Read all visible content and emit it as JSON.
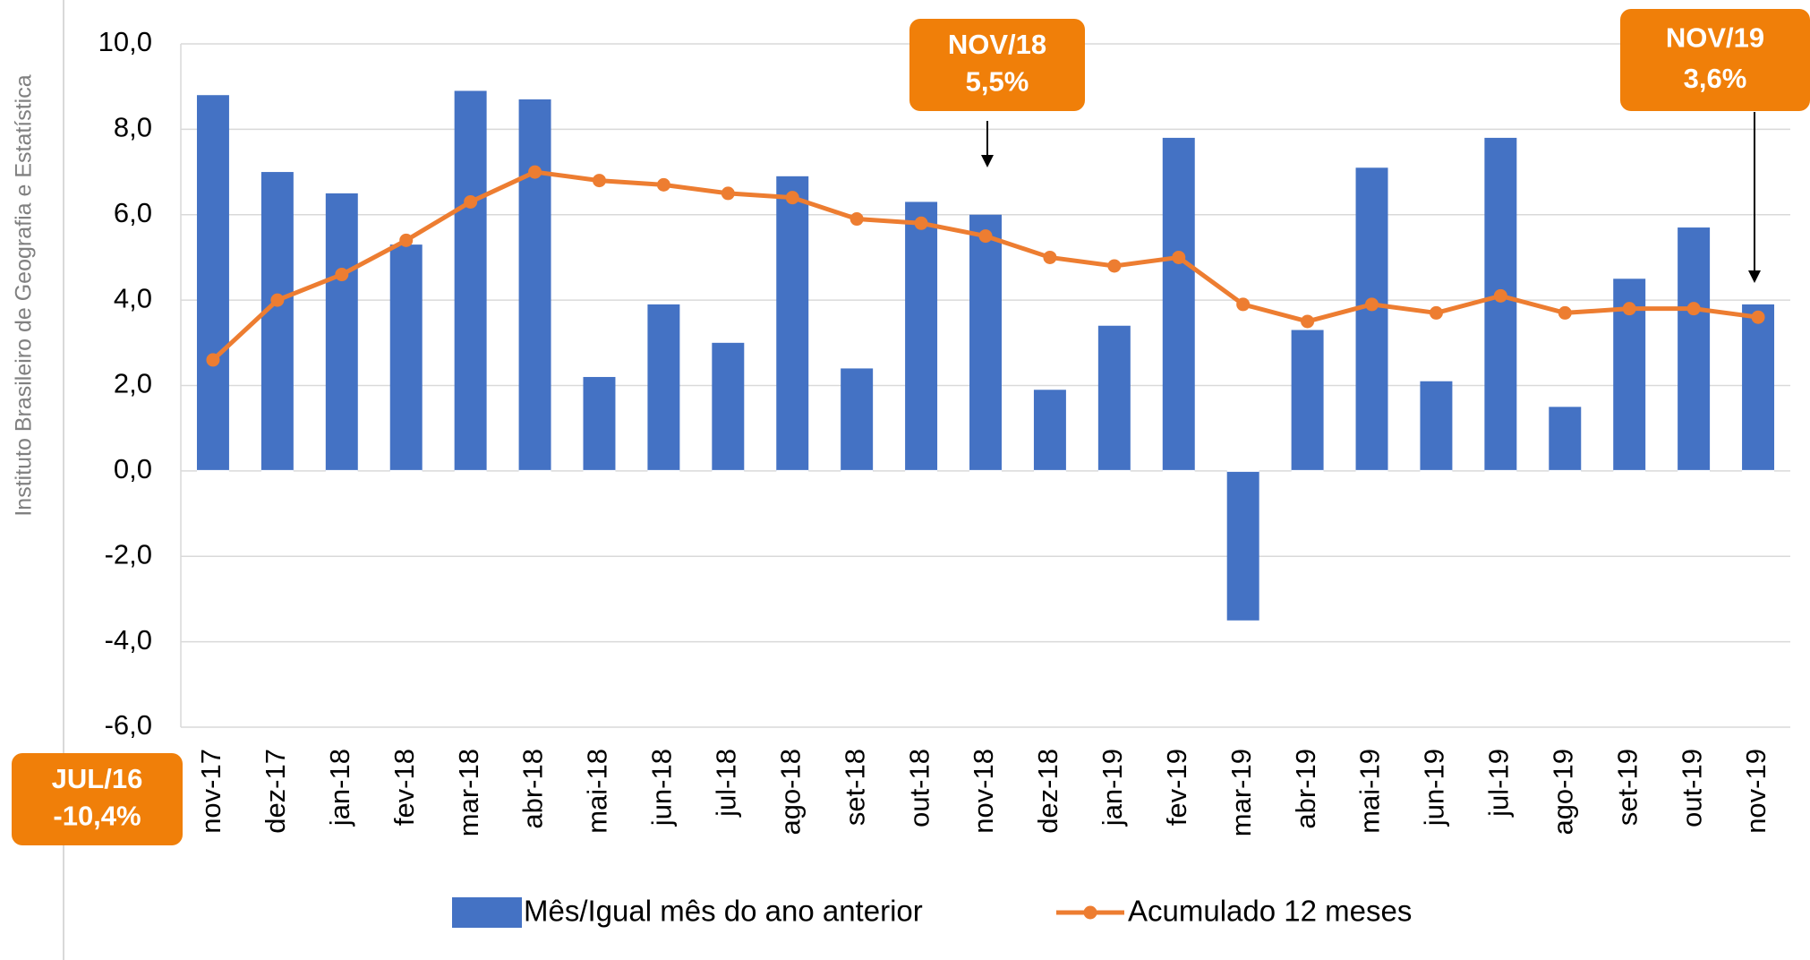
{
  "chart_data": {
    "type": "bar_line",
    "side_label": "Instituto Brasileiro de Geografia e Estatística",
    "categories": [
      "nov-17",
      "dez-17",
      "jan-18",
      "fev-18",
      "mar-18",
      "abr-18",
      "mai-18",
      "jun-18",
      "jul-18",
      "ago-18",
      "set-18",
      "out-18",
      "nov-18",
      "dez-18",
      "jan-19",
      "fev-19",
      "mar-19",
      "abr-19",
      "mai-19",
      "jun-19",
      "jul-19",
      "ago-19",
      "set-19",
      "out-19",
      "nov-19"
    ],
    "series": [
      {
        "name": "Mês/Igual mês do ano anterior",
        "type": "bar",
        "color": "#4472c4",
        "values": [
          8.8,
          7.0,
          6.5,
          5.3,
          8.9,
          8.7,
          2.2,
          3.9,
          3.0,
          6.9,
          2.4,
          6.3,
          6.0,
          1.9,
          3.4,
          7.8,
          -3.5,
          3.3,
          7.1,
          2.1,
          7.8,
          1.5,
          4.5,
          5.7,
          3.9
        ]
      },
      {
        "name": "Acumulado 12 meses",
        "type": "line",
        "color": "#ed7d31",
        "values": [
          2.6,
          4.0,
          4.6,
          5.4,
          6.3,
          7.0,
          6.8,
          6.7,
          6.5,
          6.4,
          5.9,
          5.8,
          5.5,
          5.0,
          4.8,
          5.0,
          3.9,
          3.5,
          3.9,
          3.7,
          4.1,
          3.7,
          3.8,
          3.8,
          3.6
        ]
      }
    ],
    "ylim": [
      -6,
      10
    ],
    "yticks": [
      {
        "value": -6,
        "label": "-6,0"
      },
      {
        "value": -4,
        "label": "-4,0"
      },
      {
        "value": -2,
        "label": "-2,0"
      },
      {
        "value": 0,
        "label": "0,0"
      },
      {
        "value": 2,
        "label": "2,0"
      },
      {
        "value": 4,
        "label": "4,0"
      },
      {
        "value": 6,
        "label": "6,0"
      },
      {
        "value": 8,
        "label": "8,0"
      },
      {
        "value": 10,
        "label": "10,0"
      }
    ],
    "grid": true,
    "annotations": [
      {
        "title": "NOV/18",
        "text": "5,5%",
        "color": "#f07f09"
      },
      {
        "title": "NOV/19",
        "text": "3,6%",
        "color": "#f07f09"
      },
      {
        "title": "JUL/16",
        "text": "-10,4%",
        "color": "#f07f09"
      }
    ]
  }
}
